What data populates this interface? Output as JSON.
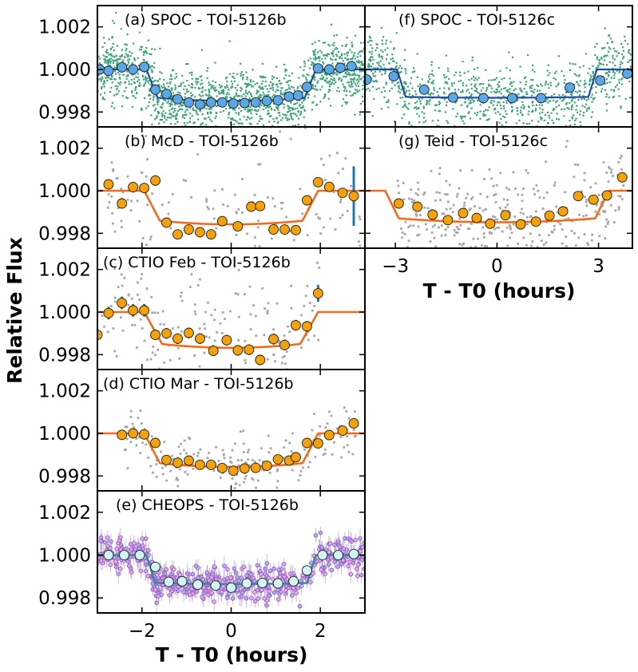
{
  "figure": {
    "ylabel": "Relative Flux",
    "xlabel_left": "T - T0 (hours)",
    "xlabel_right": "T - T0 (hours)",
    "ylim": [
      0.9973,
      1.003
    ],
    "yticks": [
      0.998,
      1.0,
      1.002
    ],
    "ytick_labels": [
      "0.998",
      "1.000",
      "1.002"
    ],
    "xlim_left": [
      -3.0,
      3.0
    ],
    "xticks_left": [
      -2,
      0,
      2
    ],
    "xtick_labels_left": [
      "−2",
      "0",
      "2"
    ],
    "xlim_right": [
      -3.9,
      4.0
    ],
    "xticks_right": [
      -3,
      0,
      3
    ],
    "xtick_labels_right": [
      "−3",
      "0",
      "3"
    ],
    "colors": {
      "spoc_scatter": "#3fa37a",
      "spoc_bin": "#5aa7e8",
      "spoc_model": "#1f4e9c",
      "ground_scatter": "#a6a6a6",
      "ground_bin": "#f5a20a",
      "ground_err": "#1f77b4",
      "ground_model": "#f26b1d",
      "cheops_scatter": "#c36be0",
      "cheops_bin": "#d4f5f5"
    }
  },
  "chart_data": [
    {
      "id": "a",
      "type": "scatter",
      "title": "(a) SPOC - TOI-5126b",
      "style": "spoc",
      "model": {
        "depth": 0.00148,
        "t1": 1.9,
        "t2": 1.65,
        "curv": 0.00015,
        "t0": 0.0
      },
      "binned": {
        "x": [
          -2.95,
          -2.75,
          -2.45,
          -2.2,
          -1.95,
          -1.7,
          -1.45,
          -1.2,
          -0.95,
          -0.7,
          -0.45,
          -0.2,
          0.05,
          0.3,
          0.55,
          0.8,
          1.05,
          1.3,
          1.5,
          1.7,
          1.95,
          2.2,
          2.45,
          2.7
        ],
        "y": [
          1.0,
          0.99993,
          1.0001,
          1.0,
          1.00012,
          0.99905,
          0.99885,
          0.9986,
          0.99845,
          0.99835,
          0.99845,
          0.99845,
          0.9984,
          0.99842,
          0.99845,
          0.99852,
          0.99855,
          0.99872,
          0.99878,
          0.99918,
          1.00005,
          1.0,
          1.00008,
          1.00015
        ]
      },
      "scatter": {
        "count": 1600,
        "sigma": 0.00075,
        "seed": 11
      }
    },
    {
      "id": "b",
      "type": "scatter",
      "title": "(b) McD - TOI-5126b",
      "style": "ground",
      "model": {
        "depth": 0.00158,
        "t1": 1.95,
        "t2": 1.6,
        "curv": 0.00017,
        "t0": 0.0
      },
      "binned": {
        "x": [
          -2.75,
          -2.45,
          -2.2,
          -1.95,
          -1.7,
          -1.45,
          -1.2,
          -0.95,
          -0.7,
          -0.45,
          -0.2,
          0.15,
          0.45,
          0.65,
          0.95,
          1.2,
          1.45,
          1.7,
          1.95,
          2.2,
          2.5,
          2.75
        ],
        "y": [
          1.0003,
          0.9994,
          1.00017,
          1.00013,
          1.00048,
          0.9985,
          0.99795,
          0.99818,
          0.99805,
          0.99795,
          0.99857,
          0.99833,
          0.99925,
          0.99928,
          0.99818,
          0.99818,
          0.99815,
          0.99955,
          1.0004,
          1.00018,
          0.9999,
          0.99975
        ],
        "err": [
          0.0002,
          0.0002,
          0.00025,
          0.0002,
          0.00025,
          0.0002,
          0.0002,
          0.0002,
          0.0002,
          0.0002,
          0.0002,
          0.0002,
          0.0002,
          0.0002,
          0.0002,
          0.0002,
          0.0002,
          0.0002,
          0.0002,
          0.0002,
          0.0002,
          0.0014
        ]
      },
      "scatter": {
        "count": 180,
        "sigma": 0.0017,
        "seed": 23,
        "xmin": -2.9,
        "xmax": 2.9
      }
    },
    {
      "id": "c",
      "type": "scatter",
      "title": "(c) CTIO Feb - TOI-5126b",
      "style": "ground",
      "model": {
        "depth": 0.00168,
        "t1": 1.95,
        "t2": 1.55,
        "curv": 0.00018,
        "t0": 0.0
      },
      "binned": {
        "x": [
          -3.0,
          -2.75,
          -2.45,
          -2.2,
          -1.95,
          -1.7,
          -1.45,
          -1.2,
          -0.95,
          -0.7,
          -0.4,
          -0.1,
          0.15,
          0.4,
          0.65,
          0.95,
          1.2,
          1.45,
          1.7,
          1.95
        ],
        "y": [
          0.99893,
          0.99995,
          1.00043,
          1.00008,
          1.00008,
          0.99893,
          0.999,
          0.99875,
          0.99902,
          0.99875,
          0.99818,
          0.99868,
          0.9982,
          0.99823,
          0.99775,
          0.99873,
          0.99845,
          0.99938,
          0.99933,
          1.00088
        ],
        "err": [
          0.00025,
          0.0003,
          0.0003,
          0.0003,
          0.0003,
          0.00025,
          0.00025,
          0.00025,
          0.00025,
          0.00025,
          0.00025,
          0.00025,
          0.00025,
          0.00025,
          0.00025,
          0.00025,
          0.00025,
          0.00025,
          0.00025,
          0.0004
        ]
      },
      "scatter": {
        "count": 190,
        "sigma": 0.0016,
        "seed": 37,
        "xmin": -2.95,
        "xmax": 2.0
      }
    },
    {
      "id": "d",
      "type": "scatter",
      "title": "(d) CTIO Mar - TOI-5126b",
      "style": "ground",
      "model": {
        "depth": 0.00158,
        "t1": 1.95,
        "t2": 1.6,
        "curv": 0.00018,
        "t0": 0.0
      },
      "binned": {
        "x": [
          -2.45,
          -2.2,
          -1.95,
          -1.7,
          -1.45,
          -1.2,
          -0.95,
          -0.7,
          -0.45,
          -0.2,
          0.05,
          0.3,
          0.55,
          0.8,
          1.05,
          1.3,
          1.45,
          1.7,
          1.95,
          2.2,
          2.5,
          2.75
        ],
        "y": [
          0.99993,
          1.0,
          0.99995,
          0.99955,
          0.99875,
          0.99862,
          0.99872,
          0.99852,
          0.99852,
          0.99837,
          0.99825,
          0.99835,
          0.99838,
          0.99848,
          0.99878,
          0.99872,
          0.99888,
          0.99955,
          0.99953,
          0.99992,
          1.00013,
          1.00047
        ],
        "err": [
          5e-05,
          5e-05,
          5e-05,
          5e-05,
          5e-05,
          5e-05,
          5e-05,
          5e-05,
          5e-05,
          5e-05,
          5e-05,
          5e-05,
          5e-05,
          5e-05,
          5e-05,
          5e-05,
          5e-05,
          5e-05,
          5e-05,
          5e-05,
          5e-05,
          5e-05
        ]
      },
      "scatter": {
        "count": 220,
        "sigma": 0.00065,
        "seed": 41,
        "xmin": -2.45,
        "xmax": 2.8
      }
    },
    {
      "id": "e",
      "type": "scatter",
      "title": "(e) CHEOPS - TOI-5126b",
      "style": "cheops",
      "model": {
        "depth": 0.00135,
        "t1": 1.9,
        "t2": 1.7,
        "curv": 5e-05,
        "t0": 0.0
      },
      "binned": {
        "x": [
          -2.75,
          -2.4,
          -2.05,
          -1.7,
          -1.4,
          -1.1,
          -0.75,
          -0.35,
          0.0,
          0.35,
          0.7,
          1.05,
          1.4,
          1.7,
          2.05,
          2.4,
          2.75
        ],
        "y": [
          1.0,
          1.0,
          1.0,
          0.99945,
          0.99875,
          0.99878,
          0.99862,
          0.99858,
          0.99848,
          0.99868,
          0.9987,
          0.99868,
          0.99878,
          0.99928,
          1.0,
          1.0,
          1.00005
        ]
      },
      "scatter": {
        "count": 560,
        "sigma": 0.00038,
        "seed": 53
      }
    },
    {
      "id": "f",
      "type": "scatter",
      "title": "(f) SPOC - TOI-5126c",
      "style": "spoc",
      "model": {
        "depth": 0.00133,
        "t1": 2.95,
        "t2": 2.7,
        "curv": 4e-05,
        "t0": 0.0
      },
      "binned": {
        "x": [
          -3.85,
          -3.05,
          -2.15,
          -1.3,
          -0.4,
          0.45,
          1.3,
          2.15,
          3.05,
          3.85
        ],
        "y": [
          0.99953,
          0.99968,
          0.99905,
          0.99868,
          0.99865,
          0.99865,
          0.99865,
          0.99915,
          0.99948,
          0.9998
        ]
      },
      "scatter": {
        "count": 950,
        "sigma": 0.00075,
        "seed": 67
      }
    },
    {
      "id": "g",
      "type": "scatter",
      "title": "(g) Teid - TOI-5126c",
      "style": "ground",
      "model": {
        "depth": 0.00148,
        "t1": 3.3,
        "t2": 2.9,
        "curv": 0.00018,
        "t0": 0.0
      },
      "binned": {
        "x": [
          -2.9,
          -2.35,
          -1.9,
          -1.45,
          -1.0,
          -0.6,
          -0.2,
          0.25,
          0.7,
          1.15,
          1.55,
          1.95,
          2.4,
          2.85,
          3.25,
          3.7
        ],
        "y": [
          0.9994,
          0.99925,
          0.99888,
          0.99862,
          0.99895,
          0.99872,
          0.99845,
          0.99885,
          0.99842,
          0.99855,
          0.99883,
          0.99903,
          0.99975,
          0.99958,
          0.99978,
          1.00063
        ],
        "err": [
          5e-05,
          5e-05,
          5e-05,
          5e-05,
          5e-05,
          5e-05,
          5e-05,
          5e-05,
          5e-05,
          5e-05,
          5e-05,
          5e-05,
          5e-05,
          5e-05,
          5e-05,
          0.00018
        ]
      },
      "scatter": {
        "count": 360,
        "sigma": 0.0012,
        "seed": 79,
        "xmin": -2.95,
        "xmax": 3.75
      }
    }
  ]
}
